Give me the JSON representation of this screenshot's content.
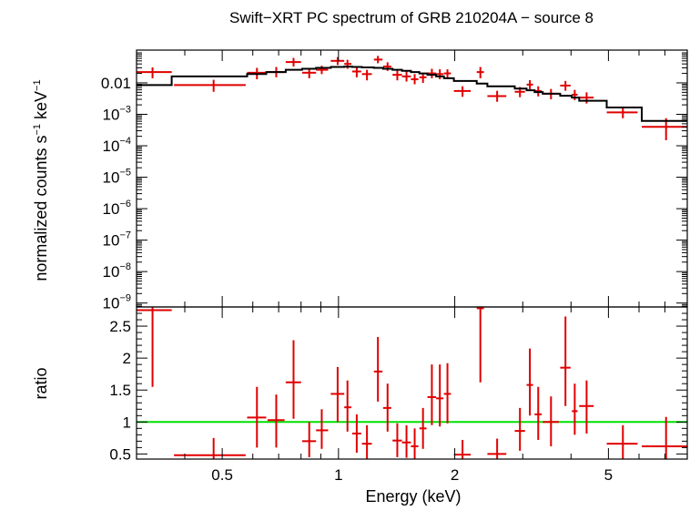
{
  "chart_data": {
    "type": "scatter",
    "title": "Swift−XRT PC spectrum of GRB 210204A − source 8",
    "xlabel": "Energy (keV)",
    "x_scale": "log",
    "xlim": [
      0.3,
      8.0
    ],
    "x_ticks": [
      {
        "value": 0.5,
        "label": "0.5"
      },
      {
        "value": 1,
        "label": "1"
      },
      {
        "value": 2,
        "label": "2"
      },
      {
        "value": 5,
        "label": "5"
      }
    ],
    "panels": [
      {
        "name": "spectrum",
        "ylabel_main": "normalized counts s",
        "ylabel_sup1": "−1",
        "ylabel_mid": " keV",
        "ylabel_sup2": "−1",
        "y_scale": "log",
        "ylim": [
          7.5e-10,
          0.11
        ],
        "y_ticks": [
          {
            "value": 0.01,
            "base": "0.01",
            "exp": ""
          },
          {
            "value": 0.001,
            "base": "10",
            "exp": "−3"
          },
          {
            "value": 0.0001,
            "base": "10",
            "exp": "−4"
          },
          {
            "value": 1e-05,
            "base": "10",
            "exp": "−5"
          },
          {
            "value": 1e-06,
            "base": "10",
            "exp": "−6"
          },
          {
            "value": 1e-07,
            "base": "10",
            "exp": "−7"
          },
          {
            "value": 1e-08,
            "base": "10",
            "exp": "−8"
          },
          {
            "value": 1e-09,
            "base": "10",
            "exp": "−9"
          }
        ],
        "series": [
          {
            "kind": "data",
            "color": "#e00000",
            "points": [
              {
                "x": 0.33,
                "xlo": 0.3,
                "xhi": 0.37,
                "y": 0.022,
                "ylo": 0.014,
                "yhi": 0.031
              },
              {
                "x": 0.475,
                "xlo": 0.375,
                "xhi": 0.575,
                "y": 0.0085,
                "ylo": 0.0052,
                "yhi": 0.0125
              },
              {
                "x": 0.615,
                "xlo": 0.58,
                "xhi": 0.65,
                "y": 0.021,
                "ylo": 0.013,
                "yhi": 0.03
              },
              {
                "x": 0.69,
                "xlo": 0.655,
                "xhi": 0.725,
                "y": 0.022,
                "ylo": 0.015,
                "yhi": 0.032
              },
              {
                "x": 0.765,
                "xlo": 0.73,
                "xhi": 0.8,
                "y": 0.046,
                "ylo": 0.033,
                "yhi": 0.062
              },
              {
                "x": 0.84,
                "xlo": 0.805,
                "xhi": 0.875,
                "y": 0.021,
                "ylo": 0.014,
                "yhi": 0.029
              },
              {
                "x": 0.905,
                "xlo": 0.875,
                "xhi": 0.94,
                "y": 0.026,
                "ylo": 0.019,
                "yhi": 0.035
              },
              {
                "x": 0.995,
                "xlo": 0.955,
                "xhi": 1.035,
                "y": 0.05,
                "ylo": 0.037,
                "yhi": 0.066
              },
              {
                "x": 1.055,
                "xlo": 1.035,
                "xhi": 1.08,
                "y": 0.04,
                "ylo": 0.028,
                "yhi": 0.054
              },
              {
                "x": 1.115,
                "xlo": 1.085,
                "xhi": 1.145,
                "y": 0.023,
                "ylo": 0.015,
                "yhi": 0.032
              },
              {
                "x": 1.185,
                "xlo": 1.15,
                "xhi": 1.22,
                "y": 0.019,
                "ylo": 0.012,
                "yhi": 0.026
              },
              {
                "x": 1.265,
                "xlo": 1.235,
                "xhi": 1.3,
                "y": 0.055,
                "ylo": 0.042,
                "yhi": 0.072
              },
              {
                "x": 1.34,
                "xlo": 1.305,
                "xhi": 1.37,
                "y": 0.033,
                "ylo": 0.024,
                "yhi": 0.045
              },
              {
                "x": 1.42,
                "xlo": 1.38,
                "xhi": 1.46,
                "y": 0.018,
                "ylo": 0.012,
                "yhi": 0.025
              },
              {
                "x": 1.5,
                "xlo": 1.46,
                "xhi": 1.54,
                "y": 0.016,
                "ylo": 0.011,
                "yhi": 0.023
              },
              {
                "x": 1.575,
                "xlo": 1.54,
                "xhi": 1.61,
                "y": 0.013,
                "ylo": 0.009,
                "yhi": 0.019
              },
              {
                "x": 1.655,
                "xlo": 1.62,
                "xhi": 1.69,
                "y": 0.015,
                "ylo": 0.01,
                "yhi": 0.021
              },
              {
                "x": 1.745,
                "xlo": 1.7,
                "xhi": 1.79,
                "y": 0.02,
                "ylo": 0.014,
                "yhi": 0.028
              },
              {
                "x": 1.83,
                "xlo": 1.79,
                "xhi": 1.87,
                "y": 0.019,
                "ylo": 0.013,
                "yhi": 0.027
              },
              {
                "x": 1.915,
                "xlo": 1.875,
                "xhi": 1.955,
                "y": 0.02,
                "ylo": 0.014,
                "yhi": 0.027
              },
              {
                "x": 2.095,
                "xlo": 1.99,
                "xhi": 2.2,
                "y": 0.0055,
                "ylo": 0.0036,
                "yhi": 0.0078
              },
              {
                "x": 2.33,
                "xlo": 2.28,
                "xhi": 2.38,
                "y": 0.022,
                "ylo": 0.014,
                "yhi": 0.032
              },
              {
                "x": 2.575,
                "xlo": 2.43,
                "xhi": 2.72,
                "y": 0.0038,
                "ylo": 0.0025,
                "yhi": 0.0056
              },
              {
                "x": 2.95,
                "xlo": 2.86,
                "xhi": 3.04,
                "y": 0.0052,
                "ylo": 0.0035,
                "yhi": 0.0074
              },
              {
                "x": 3.13,
                "xlo": 3.07,
                "xhi": 3.19,
                "y": 0.0088,
                "ylo": 0.0062,
                "yhi": 0.0122
              },
              {
                "x": 3.29,
                "xlo": 3.22,
                "xhi": 3.36,
                "y": 0.0055,
                "ylo": 0.0037,
                "yhi": 0.0078
              },
              {
                "x": 3.55,
                "xlo": 3.38,
                "xhi": 3.72,
                "y": 0.0045,
                "ylo": 0.003,
                "yhi": 0.0064
              },
              {
                "x": 3.87,
                "xlo": 3.75,
                "xhi": 3.99,
                "y": 0.0082,
                "ylo": 0.0056,
                "yhi": 0.0115
              },
              {
                "x": 4.09,
                "xlo": 4.02,
                "xhi": 4.16,
                "y": 0.0042,
                "ylo": 0.0028,
                "yhi": 0.006
              },
              {
                "x": 4.39,
                "xlo": 4.2,
                "xhi": 4.58,
                "y": 0.0034,
                "ylo": 0.0022,
                "yhi": 0.005
              },
              {
                "x": 5.45,
                "xlo": 4.95,
                "xhi": 5.95,
                "y": 0.00115,
                "ylo": 0.00075,
                "yhi": 0.0017
              },
              {
                "x": 7.05,
                "xlo": 6.1,
                "xhi": 8.0,
                "y": 0.0004,
                "ylo": 0.00015,
                "yhi": 0.00075
              }
            ]
          },
          {
            "kind": "model",
            "color": "#000000",
            "steps": [
              {
                "xlo": 0.3,
                "xhi": 0.37,
                "y": 0.0085
              },
              {
                "xlo": 0.37,
                "xhi": 0.58,
                "y": 0.016
              },
              {
                "xlo": 0.58,
                "xhi": 0.65,
                "y": 0.019
              },
              {
                "xlo": 0.65,
                "xhi": 0.73,
                "y": 0.022
              },
              {
                "xlo": 0.73,
                "xhi": 0.805,
                "y": 0.026
              },
              {
                "xlo": 0.805,
                "xhi": 0.875,
                "y": 0.028
              },
              {
                "xlo": 0.875,
                "xhi": 0.955,
                "y": 0.03
              },
              {
                "xlo": 0.955,
                "xhi": 1.035,
                "y": 0.032
              },
              {
                "xlo": 1.035,
                "xhi": 1.085,
                "y": 0.033
              },
              {
                "xlo": 1.085,
                "xhi": 1.15,
                "y": 0.032
              },
              {
                "xlo": 1.15,
                "xhi": 1.235,
                "y": 0.031
              },
              {
                "xlo": 1.235,
                "xhi": 1.305,
                "y": 0.03
              },
              {
                "xlo": 1.305,
                "xhi": 1.38,
                "y": 0.028
              },
              {
                "xlo": 1.38,
                "xhi": 1.46,
                "y": 0.026
              },
              {
                "xlo": 1.46,
                "xhi": 1.54,
                "y": 0.024
              },
              {
                "xlo": 1.54,
                "xhi": 1.62,
                "y": 0.022
              },
              {
                "xlo": 1.62,
                "xhi": 1.7,
                "y": 0.02
              },
              {
                "xlo": 1.7,
                "xhi": 1.79,
                "y": 0.018
              },
              {
                "xlo": 1.79,
                "xhi": 1.875,
                "y": 0.016
              },
              {
                "xlo": 1.875,
                "xhi": 1.99,
                "y": 0.014
              },
              {
                "xlo": 1.99,
                "xhi": 2.28,
                "y": 0.0115
              },
              {
                "xlo": 2.28,
                "xhi": 2.43,
                "y": 0.0095
              },
              {
                "xlo": 2.43,
                "xhi": 2.86,
                "y": 0.0078
              },
              {
                "xlo": 2.86,
                "xhi": 3.07,
                "y": 0.0066
              },
              {
                "xlo": 3.07,
                "xhi": 3.22,
                "y": 0.0058
              },
              {
                "xlo": 3.22,
                "xhi": 3.38,
                "y": 0.0051
              },
              {
                "xlo": 3.38,
                "xhi": 3.75,
                "y": 0.0045
              },
              {
                "xlo": 3.75,
                "xhi": 4.02,
                "y": 0.0039
              },
              {
                "xlo": 4.02,
                "xhi": 4.2,
                "y": 0.0034
              },
              {
                "xlo": 4.2,
                "xhi": 4.95,
                "y": 0.0027
              },
              {
                "xlo": 4.95,
                "xhi": 6.1,
                "y": 0.00165
              },
              {
                "xlo": 6.1,
                "xhi": 8.0,
                "y": 0.00062
              }
            ]
          }
        ]
      },
      {
        "name": "ratio",
        "ylabel": "ratio",
        "y_scale": "linear",
        "ylim": [
          0.42,
          2.8
        ],
        "y_ticks": [
          {
            "value": 0.5,
            "label": "0.5"
          },
          {
            "value": 1,
            "label": "1"
          },
          {
            "value": 1.5,
            "label": "1.5"
          },
          {
            "value": 2,
            "label": "2"
          },
          {
            "value": 2.5,
            "label": "2.5"
          }
        ],
        "reference_line": {
          "y": 1,
          "color": "#00e000"
        },
        "series": [
          {
            "kind": "data",
            "color": "#e00000",
            "points": [
              {
                "x": 0.33,
                "xlo": 0.3,
                "xhi": 0.37,
                "y": 2.75,
                "ylo": 1.55,
                "yhi": 2.8
              },
              {
                "x": 0.475,
                "xlo": 0.375,
                "xhi": 0.575,
                "y": 0.48,
                "ylo": 0.42,
                "yhi": 0.75
              },
              {
                "x": 0.615,
                "xlo": 0.58,
                "xhi": 0.65,
                "y": 1.07,
                "ylo": 0.6,
                "yhi": 1.55
              },
              {
                "x": 0.69,
                "xlo": 0.655,
                "xhi": 0.725,
                "y": 1.03,
                "ylo": 0.6,
                "yhi": 1.43
              },
              {
                "x": 0.765,
                "xlo": 0.73,
                "xhi": 0.8,
                "y": 1.62,
                "ylo": 1.05,
                "yhi": 2.28
              },
              {
                "x": 0.84,
                "xlo": 0.805,
                "xhi": 0.875,
                "y": 0.7,
                "ylo": 0.45,
                "yhi": 1.0
              },
              {
                "x": 0.905,
                "xlo": 0.875,
                "xhi": 0.94,
                "y": 0.87,
                "ylo": 0.58,
                "yhi": 1.2
              },
              {
                "x": 0.995,
                "xlo": 0.955,
                "xhi": 1.035,
                "y": 1.44,
                "ylo": 1.0,
                "yhi": 1.86
              },
              {
                "x": 1.055,
                "xlo": 1.035,
                "xhi": 1.08,
                "y": 1.23,
                "ylo": 0.85,
                "yhi": 1.65
              },
              {
                "x": 1.115,
                "xlo": 1.085,
                "xhi": 1.145,
                "y": 0.82,
                "ylo": 0.52,
                "yhi": 1.12
              },
              {
                "x": 1.185,
                "xlo": 1.15,
                "xhi": 1.22,
                "y": 0.66,
                "ylo": 0.42,
                "yhi": 0.95
              },
              {
                "x": 1.265,
                "xlo": 1.235,
                "xhi": 1.3,
                "y": 1.79,
                "ylo": 1.32,
                "yhi": 2.33
              },
              {
                "x": 1.34,
                "xlo": 1.305,
                "xhi": 1.37,
                "y": 1.22,
                "ylo": 0.85,
                "yhi": 1.6
              },
              {
                "x": 1.42,
                "xlo": 1.38,
                "xhi": 1.46,
                "y": 0.71,
                "ylo": 0.45,
                "yhi": 0.98
              },
              {
                "x": 1.5,
                "xlo": 1.46,
                "xhi": 1.54,
                "y": 0.68,
                "ylo": 0.44,
                "yhi": 0.95
              },
              {
                "x": 1.575,
                "xlo": 1.54,
                "xhi": 1.61,
                "y": 0.62,
                "ylo": 0.42,
                "yhi": 0.9
              },
              {
                "x": 1.655,
                "xlo": 1.62,
                "xhi": 1.69,
                "y": 0.9,
                "ylo": 0.58,
                "yhi": 1.22
              },
              {
                "x": 1.745,
                "xlo": 1.7,
                "xhi": 1.79,
                "y": 1.39,
                "ylo": 0.95,
                "yhi": 1.9
              },
              {
                "x": 1.83,
                "xlo": 1.79,
                "xhi": 1.87,
                "y": 1.37,
                "ylo": 0.93,
                "yhi": 1.9
              },
              {
                "x": 1.915,
                "xlo": 1.875,
                "xhi": 1.955,
                "y": 1.44,
                "ylo": 0.98,
                "yhi": 1.92
              },
              {
                "x": 2.095,
                "xlo": 1.99,
                "xhi": 2.2,
                "y": 0.49,
                "ylo": 0.42,
                "yhi": 0.72
              },
              {
                "x": 2.33,
                "xlo": 2.28,
                "xhi": 2.38,
                "y": 2.78,
                "ylo": 1.62,
                "yhi": 2.8
              },
              {
                "x": 2.575,
                "xlo": 2.43,
                "xhi": 2.72,
                "y": 0.5,
                "ylo": 0.42,
                "yhi": 0.74
              },
              {
                "x": 2.95,
                "xlo": 2.86,
                "xhi": 3.04,
                "y": 0.86,
                "ylo": 0.55,
                "yhi": 1.22
              },
              {
                "x": 3.13,
                "xlo": 3.07,
                "xhi": 3.19,
                "y": 1.58,
                "ylo": 1.1,
                "yhi": 2.15
              },
              {
                "x": 3.29,
                "xlo": 3.22,
                "xhi": 3.36,
                "y": 1.12,
                "ylo": 0.72,
                "yhi": 1.55
              },
              {
                "x": 3.55,
                "xlo": 3.38,
                "xhi": 3.72,
                "y": 1.0,
                "ylo": 0.62,
                "yhi": 1.4
              },
              {
                "x": 3.87,
                "xlo": 3.75,
                "xhi": 3.99,
                "y": 1.85,
                "ylo": 1.25,
                "yhi": 2.65
              },
              {
                "x": 4.09,
                "xlo": 4.02,
                "xhi": 4.16,
                "y": 1.17,
                "ylo": 0.8,
                "yhi": 1.6
              },
              {
                "x": 4.39,
                "xlo": 4.2,
                "xhi": 4.58,
                "y": 1.25,
                "ylo": 0.82,
                "yhi": 1.65
              },
              {
                "x": 5.45,
                "xlo": 4.95,
                "xhi": 5.95,
                "y": 0.66,
                "ylo": 0.42,
                "yhi": 0.95
              },
              {
                "x": 7.05,
                "xlo": 6.1,
                "xhi": 8.0,
                "y": 0.62,
                "ylo": 0.42,
                "yhi": 1.08
              }
            ]
          }
        ]
      }
    ]
  }
}
